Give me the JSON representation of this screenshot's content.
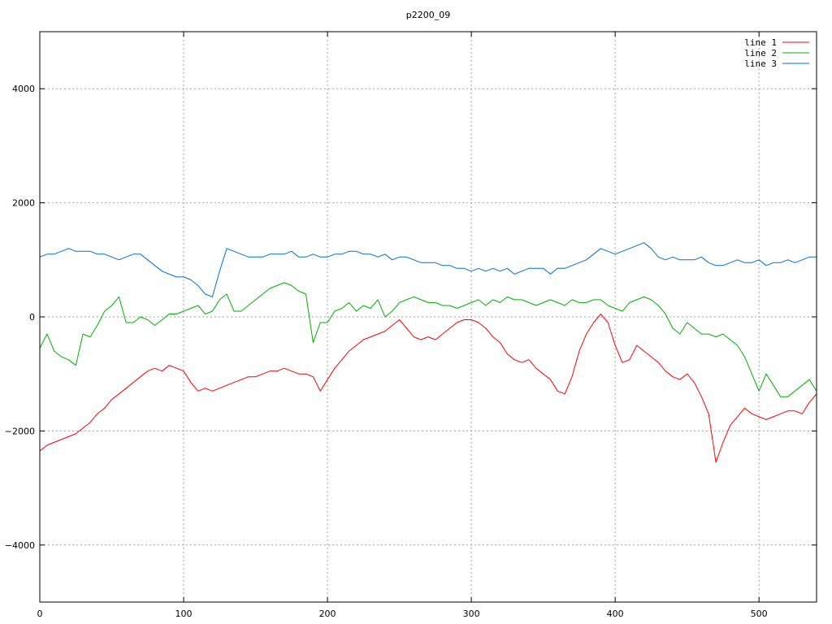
{
  "chart_data": {
    "type": "line",
    "title": "p2200_09",
    "xlabel": "",
    "ylabel": "",
    "xlim": [
      0,
      540
    ],
    "ylim": [
      -5000,
      5000
    ],
    "x_ticks": [
      0,
      100,
      200,
      300,
      400,
      500
    ],
    "y_ticks": [
      -4000,
      -2000,
      0,
      2000,
      4000
    ],
    "x_tick_labels": [
      "0",
      "100",
      "200",
      "300",
      "400",
      "500"
    ],
    "y_tick_labels": [
      "−4000",
      "−2000",
      "0",
      "2000",
      "4000"
    ],
    "grid": true,
    "legend_position": "top-right",
    "x": [
      0,
      5,
      10,
      15,
      20,
      25,
      30,
      35,
      40,
      45,
      50,
      55,
      60,
      65,
      70,
      75,
      80,
      85,
      90,
      95,
      100,
      105,
      110,
      115,
      120,
      125,
      130,
      135,
      140,
      145,
      150,
      155,
      160,
      165,
      170,
      175,
      180,
      185,
      190,
      195,
      200,
      205,
      210,
      215,
      220,
      225,
      230,
      235,
      240,
      245,
      250,
      255,
      260,
      265,
      270,
      275,
      280,
      285,
      290,
      295,
      300,
      305,
      310,
      315,
      320,
      325,
      330,
      335,
      340,
      345,
      350,
      355,
      360,
      365,
      370,
      375,
      380,
      385,
      390,
      395,
      400,
      405,
      410,
      415,
      420,
      425,
      430,
      435,
      440,
      445,
      450,
      455,
      460,
      465,
      470,
      475,
      480,
      485,
      490,
      495,
      500,
      505,
      510,
      515,
      520,
      525,
      530,
      535,
      540
    ],
    "series": [
      {
        "name": "line 1",
        "color": "#ff0000",
        "values": [
          -2350,
          -2250,
          -2200,
          -2150,
          -2100,
          -2050,
          -1950,
          -1850,
          -1700,
          -1600,
          -1450,
          -1350,
          -1250,
          -1150,
          -1050,
          -950,
          -900,
          -950,
          -850,
          -900,
          -950,
          -1150,
          -1300,
          -1250,
          -1300,
          -1250,
          -1200,
          -1150,
          -1100,
          -1050,
          -1050,
          -1000,
          -950,
          -950,
          -900,
          -950,
          -1000,
          -1000,
          -1050,
          -1300,
          -1100,
          -900,
          -750,
          -600,
          -500,
          -400,
          -350,
          -300,
          -250,
          -150,
          -50,
          -200,
          -350,
          -400,
          -350,
          -400,
          -300,
          -200,
          -100,
          -50,
          -50,
          -100,
          -200,
          -350,
          -450,
          -650,
          -750,
          -800,
          -750,
          -900,
          -1000,
          -1100,
          -1300,
          -1350,
          -1050,
          -600,
          -300,
          -100,
          50,
          -100,
          -500,
          -800,
          -750,
          -500,
          -600,
          -700,
          -800,
          -950,
          -1050,
          -1100,
          -1000,
          -1150,
          -1400,
          -1700,
          -2550,
          -2200,
          -1900,
          -1750,
          -1600,
          -1700,
          -1750,
          -1800,
          -1750,
          -1700,
          -1650,
          -1650,
          -1700,
          -1500,
          -1350
        ]
      },
      {
        "name": "line 2",
        "color": "#00b000",
        "values": [
          -550,
          -300,
          -600,
          -700,
          -750,
          -850,
          -300,
          -350,
          -150,
          100,
          200,
          350,
          -100,
          -100,
          0,
          -50,
          -150,
          -50,
          50,
          50,
          100,
          150,
          200,
          50,
          100,
          300,
          400,
          100,
          100,
          200,
          300,
          400,
          500,
          550,
          600,
          550,
          450,
          400,
          -450,
          -100,
          -100,
          100,
          150,
          250,
          100,
          200,
          150,
          300,
          0,
          100,
          250,
          300,
          350,
          300,
          250,
          250,
          200,
          200,
          150,
          200,
          250,
          300,
          200,
          300,
          250,
          350,
          300,
          300,
          250,
          200,
          250,
          300,
          250,
          200,
          300,
          250,
          250,
          300,
          300,
          200,
          150,
          100,
          250,
          300,
          350,
          300,
          200,
          50,
          -200,
          -300,
          -100,
          -200,
          -300,
          -300,
          -350,
          -300,
          -400,
          -500,
          -700,
          -1000,
          -1300,
          -1000,
          -1200,
          -1400,
          -1400,
          -1300,
          -1200,
          -1100,
          -1300
        ]
      },
      {
        "name": "line 3",
        "color": "#0070d0",
        "values": [
          1050,
          1100,
          1100,
          1150,
          1200,
          1150,
          1150,
          1150,
          1100,
          1100,
          1050,
          1000,
          1050,
          1100,
          1100,
          1000,
          900,
          800,
          750,
          700,
          700,
          650,
          550,
          400,
          350,
          800,
          1200,
          1150,
          1100,
          1050,
          1050,
          1050,
          1100,
          1100,
          1100,
          1150,
          1050,
          1050,
          1100,
          1050,
          1050,
          1100,
          1100,
          1150,
          1150,
          1100,
          1100,
          1050,
          1100,
          1000,
          1050,
          1050,
          1000,
          950,
          950,
          950,
          900,
          900,
          850,
          850,
          800,
          850,
          800,
          850,
          800,
          850,
          750,
          800,
          850,
          850,
          850,
          750,
          850,
          850,
          900,
          950,
          1000,
          1100,
          1200,
          1150,
          1100,
          1150,
          1200,
          1250,
          1300,
          1200,
          1050,
          1000,
          1050,
          1000,
          1000,
          1000,
          1050,
          950,
          900,
          900,
          950,
          1000,
          950,
          950,
          1000,
          900,
          950,
          950,
          1000,
          950,
          1000,
          1050,
          1050
        ]
      }
    ]
  }
}
